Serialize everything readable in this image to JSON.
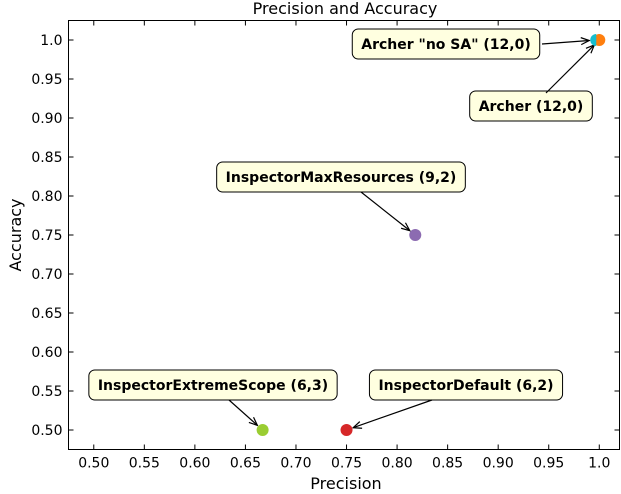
{
  "chart_data": {
    "type": "scatter",
    "title": "Precision and Accuracy",
    "xlabel": "Precision",
    "ylabel": "Accuracy",
    "xlim": [
      0.475,
      1.02
    ],
    "ylim": [
      0.475,
      1.025
    ],
    "xticks": [
      "0.50",
      "0.55",
      "0.60",
      "0.65",
      "0.70",
      "0.75",
      "0.80",
      "0.85",
      "0.90",
      "0.95",
      "1.0"
    ],
    "yticks": [
      "0.50",
      "0.55",
      "0.60",
      "0.65",
      "0.70",
      "0.75",
      "0.80",
      "0.85",
      "0.90",
      "0.95",
      "1.0"
    ],
    "grid": false,
    "points": [
      {
        "x": 1.0,
        "y": 1.0,
        "color": "#ff7f0e",
        "label": "Archer (12,0)"
      },
      {
        "x": 0.997,
        "y": 1.0,
        "color": "#17becf",
        "label": "Archer \"no SA\" (12,0)"
      },
      {
        "x": 0.818,
        "y": 0.75,
        "color": "#8c6bb1",
        "label": "InspectorMaxResources (9,2)"
      },
      {
        "x": 0.667,
        "y": 0.5,
        "color": "#9acd32",
        "label": "InspectorExtremeScope (6,3)"
      },
      {
        "x": 0.75,
        "y": 0.5,
        "color": "#d62728",
        "label": "InspectorDefault (6,2)"
      }
    ]
  }
}
